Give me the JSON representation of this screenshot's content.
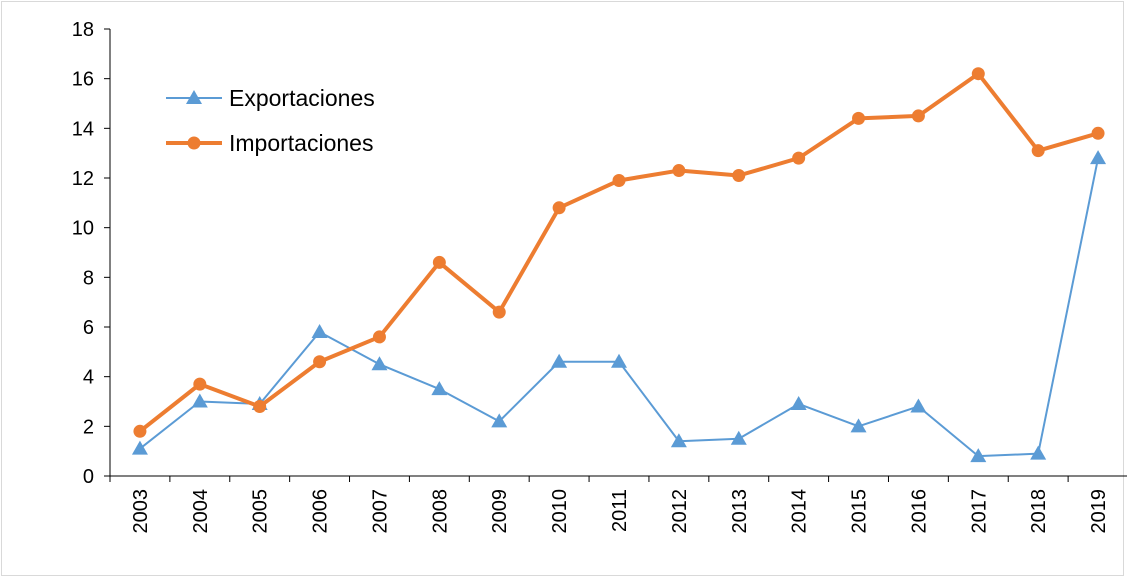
{
  "chart_data": {
    "type": "line",
    "title": "",
    "xlabel": "",
    "ylabel": "",
    "categories": [
      "2003",
      "2004",
      "2005",
      "2006",
      "2007",
      "2008",
      "2009",
      "2010",
      "2011",
      "2012",
      "2013",
      "2014",
      "2015",
      "2016",
      "2017",
      "2018",
      "2019"
    ],
    "ylim": [
      0,
      18
    ],
    "yticks": [
      0,
      2,
      4,
      6,
      8,
      10,
      12,
      14,
      16,
      18
    ],
    "grid": false,
    "legend_position": "top-left",
    "series": [
      {
        "name": "Exportaciones",
        "color": "#5b9bd5",
        "marker": "triangle",
        "values": [
          1.1,
          3.0,
          2.9,
          5.8,
          4.5,
          3.5,
          2.2,
          4.6,
          4.6,
          1.4,
          1.5,
          2.9,
          2.0,
          2.8,
          0.8,
          0.9,
          12.8
        ]
      },
      {
        "name": "Importaciones",
        "color": "#ed7d31",
        "marker": "circle",
        "values": [
          1.8,
          3.7,
          2.8,
          4.6,
          5.6,
          8.6,
          6.6,
          10.8,
          11.9,
          12.3,
          12.1,
          12.8,
          14.4,
          14.5,
          16.2,
          13.1,
          13.8
        ]
      }
    ]
  }
}
